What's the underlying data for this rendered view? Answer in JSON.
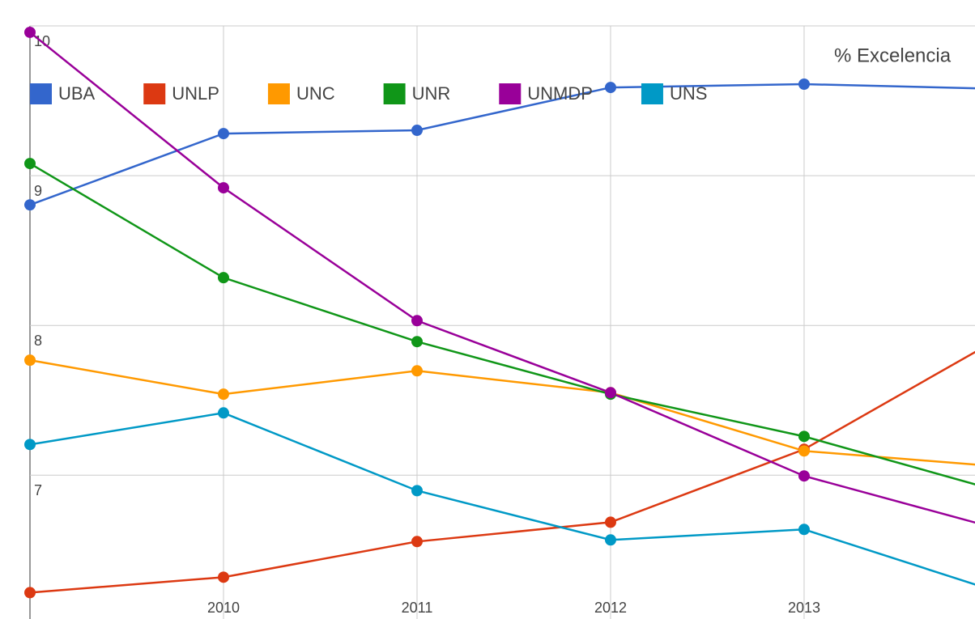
{
  "chart_data": {
    "type": "line",
    "title": "% Excelencia",
    "x": [
      2009,
      2010,
      2011,
      2012,
      2013,
      2014
    ],
    "xlim": [
      2009,
      2013.883
    ],
    "xticks": [
      2010,
      2011,
      2012,
      2013
    ],
    "ylim": [
      6.04,
      10
    ],
    "yticks": [
      7,
      8,
      9,
      10
    ],
    "grid": true,
    "legend": "top",
    "series": [
      {
        "name": "UBA",
        "color": "#3366cc",
        "values": [
          8.805,
          9.281,
          9.303,
          9.589,
          9.611,
          9.58
        ]
      },
      {
        "name": "UNLP",
        "color": "#dc3912",
        "values": [
          6.216,
          6.319,
          6.557,
          6.686,
          7.173,
          7.908
        ]
      },
      {
        "name": "UNC",
        "color": "#ff9900",
        "values": [
          7.768,
          7.541,
          7.697,
          7.551,
          7.162,
          7.059
        ]
      },
      {
        "name": "UNR",
        "color": "#109618",
        "values": [
          9.081,
          8.319,
          7.892,
          7.541,
          7.259,
          6.897
        ]
      },
      {
        "name": "UNMDP",
        "color": "#990099",
        "values": [
          9.957,
          8.919,
          8.032,
          7.551,
          6.995,
          6.643
        ]
      },
      {
        "name": "UNS",
        "color": "#0099c6",
        "values": [
          7.205,
          7.416,
          6.897,
          6.568,
          6.638,
          6.222
        ]
      }
    ]
  }
}
